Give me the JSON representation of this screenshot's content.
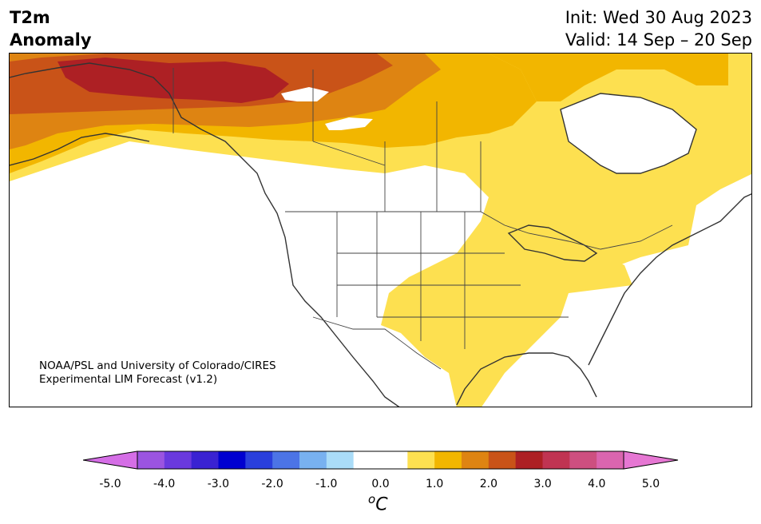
{
  "header": {
    "title_line1": "T2m",
    "title_line2": "Anomaly",
    "init": "Init: Wed 30 Aug 2023",
    "valid": "Valid: 14 Sep – 20 Sep"
  },
  "map": {
    "region": "North America",
    "credit_line1": "NOAA/PSL and University of Colorado/CIRES",
    "credit_line2": "Experimental LIM Forecast (v1.2)"
  },
  "colorbar": {
    "unit_symbol": "o",
    "unit_letter": "C",
    "tick_labels": [
      "-5.0",
      "-4.0",
      "-3.0",
      "-2.0",
      "-1.0",
      "0.0",
      "1.0",
      "2.0",
      "3.0",
      "4.0",
      "5.0"
    ],
    "colors": [
      "#d56ee6",
      "#9b54e0",
      "#6a39de",
      "#3a22d2",
      "#0000d0",
      "#2a3fdc",
      "#4c74e6",
      "#78b1f0",
      "#aadcf8",
      "#ffffff",
      "#ffffff",
      "#fde050",
      "#f2b600",
      "#de8412",
      "#c95318",
      "#ad2024",
      "#c03452",
      "#cd4f80",
      "#da65af",
      "#e677d3"
    ]
  }
}
